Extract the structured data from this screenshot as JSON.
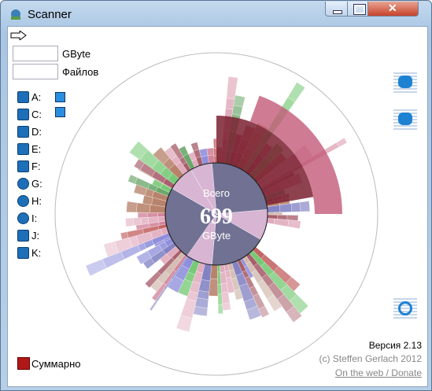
{
  "window": {
    "title": "Scanner"
  },
  "summary": {
    "size_unit": "GByte",
    "files_label": "Файлов"
  },
  "drives": [
    "A:",
    "C:",
    "D:",
    "E:",
    "F:",
    "G:",
    "H:",
    "I:",
    "J:",
    "K:"
  ],
  "center": {
    "label": "Всего",
    "value": "699",
    "unit": "GByte"
  },
  "footer": {
    "version": "Версия 2.13",
    "copyright": "(c) Steffen Gerlach 2012",
    "link": "On the web / Donate"
  },
  "legend": {
    "label": "Суммарно"
  }
}
